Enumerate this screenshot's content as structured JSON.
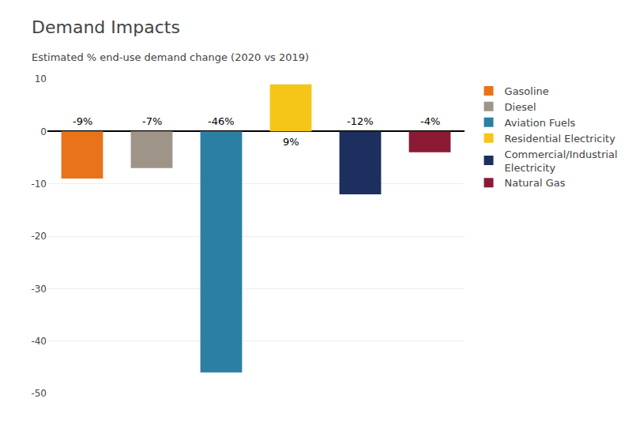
{
  "chart_data": {
    "type": "bar",
    "title": "Demand Impacts",
    "subtitle": "Estimated % end-use demand change (2020 vs 2019)",
    "categories": [
      "Gasoline",
      "Diesel",
      "Aviation Fuels",
      "Residential Electricity",
      "Commercial/Industrial\nElectricity",
      "Natural Gas"
    ],
    "values": [
      -9,
      -7,
      -46,
      9,
      -12,
      -4
    ],
    "value_labels": [
      "-9%",
      "-7%",
      "-46%",
      "9%",
      "-12%",
      "-4%"
    ],
    "colors": [
      "#E8731A",
      "#9E9488",
      "#2B7FA3",
      "#F5C518",
      "#1C2F5E",
      "#8B1A35"
    ],
    "ylim": [
      -50,
      10
    ],
    "yticks": [
      -50,
      -40,
      -30,
      -20,
      -10,
      0,
      10
    ],
    "grid": true,
    "legend": "right",
    "data_labels": true,
    "tick_labels": "y"
  }
}
